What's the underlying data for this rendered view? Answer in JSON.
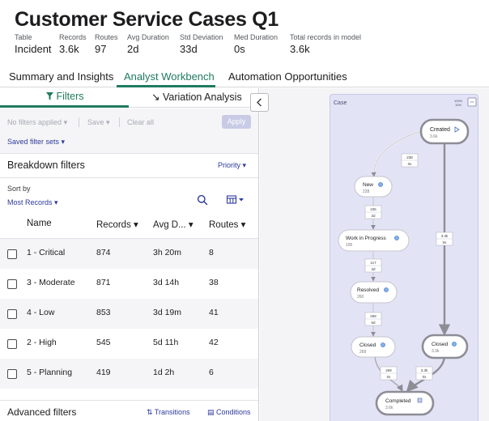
{
  "header": {
    "title": "Customer Service Cases Q1",
    "stats": [
      {
        "label": "Table",
        "value": "Incident"
      },
      {
        "label": "Records",
        "value": "3.6k"
      },
      {
        "label": "Routes",
        "value": "97"
      },
      {
        "label": "Avg Duration",
        "value": "2d"
      },
      {
        "label": "Std Deviation",
        "value": "33d"
      },
      {
        "label": "Med Duration",
        "value": "0s"
      },
      {
        "label": "Total records in model",
        "value": "3.6k"
      }
    ]
  },
  "main_tabs": [
    {
      "label": "Summary and Insights",
      "active": false
    },
    {
      "label": "Analyst Workbench",
      "active": true
    },
    {
      "label": "Automation Opportunities",
      "active": false
    }
  ],
  "sub_tabs": {
    "filters": "Filters",
    "variation": "Variation Analysis"
  },
  "filter_bar": {
    "no_filters": "No filters applied",
    "save": "Save",
    "clear_all": "Clear all",
    "apply": "Apply",
    "saved_sets": "Saved filter sets"
  },
  "breakdown": {
    "title": "Breakdown filters",
    "priority": "Priority",
    "sort_by_label": "Sort by",
    "sort_value": "Most Records",
    "columns": [
      "Name",
      "Records",
      "Avg D...",
      "Routes"
    ],
    "rows": [
      {
        "name": "1 - Critical",
        "records": "874",
        "avg": "3h 20m",
        "routes": "8"
      },
      {
        "name": "3 - Moderate",
        "records": "871",
        "avg": "3d 14h",
        "routes": "38"
      },
      {
        "name": "4 - Low",
        "records": "853",
        "avg": "3d 19m",
        "routes": "41"
      },
      {
        "name": "2 - High",
        "records": "545",
        "avg": "5d 11h",
        "routes": "42"
      },
      {
        "name": "5 - Planning",
        "records": "419",
        "avg": "1d 2h",
        "routes": "6"
      }
    ]
  },
  "advanced": {
    "title": "Advanced filters",
    "transitions": "Transitions",
    "conditions": "Conditions"
  },
  "process_map": {
    "card_title": "Case",
    "corner_labels": [
      "100%",
      "10%"
    ],
    "nodes": [
      {
        "id": "created",
        "label": "Created",
        "count": "3.6k"
      },
      {
        "id": "new",
        "label": "New",
        "count": "228"
      },
      {
        "id": "wip",
        "label": "Work in Progress",
        "count": "195"
      },
      {
        "id": "resolved",
        "label": "Resolved",
        "count": "260"
      },
      {
        "id": "closed1",
        "label": "Closed",
        "count": "269"
      },
      {
        "id": "closed2",
        "label": "Closed",
        "count": "3.3k"
      },
      {
        "id": "completed",
        "label": "Completed",
        "count": "3.6k"
      }
    ],
    "edges": [
      {
        "from": "created",
        "to": "new",
        "a": "238",
        "b": "0s"
      },
      {
        "from": "new",
        "to": "wip",
        "a": "106",
        "b": "2d"
      },
      {
        "from": "wip",
        "to": "resolved",
        "a": "117",
        "b": "3d"
      },
      {
        "from": "resolved",
        "to": "closed1",
        "a": "258",
        "b": "6d"
      },
      {
        "from": "created",
        "to": "closed2",
        "a": "3.3k",
        "b": "0s"
      },
      {
        "from": "closed1",
        "to": "completed",
        "a": "269",
        "b": "0s"
      },
      {
        "from": "closed2",
        "to": "completed",
        "a": "3.3k",
        "b": "0s"
      }
    ]
  },
  "colors": {
    "accent_green": "#1f7a5f",
    "link_blue": "#2e3a9c",
    "map_background": "#e3e3f6",
    "node_dot": "#7fb3e8"
  }
}
